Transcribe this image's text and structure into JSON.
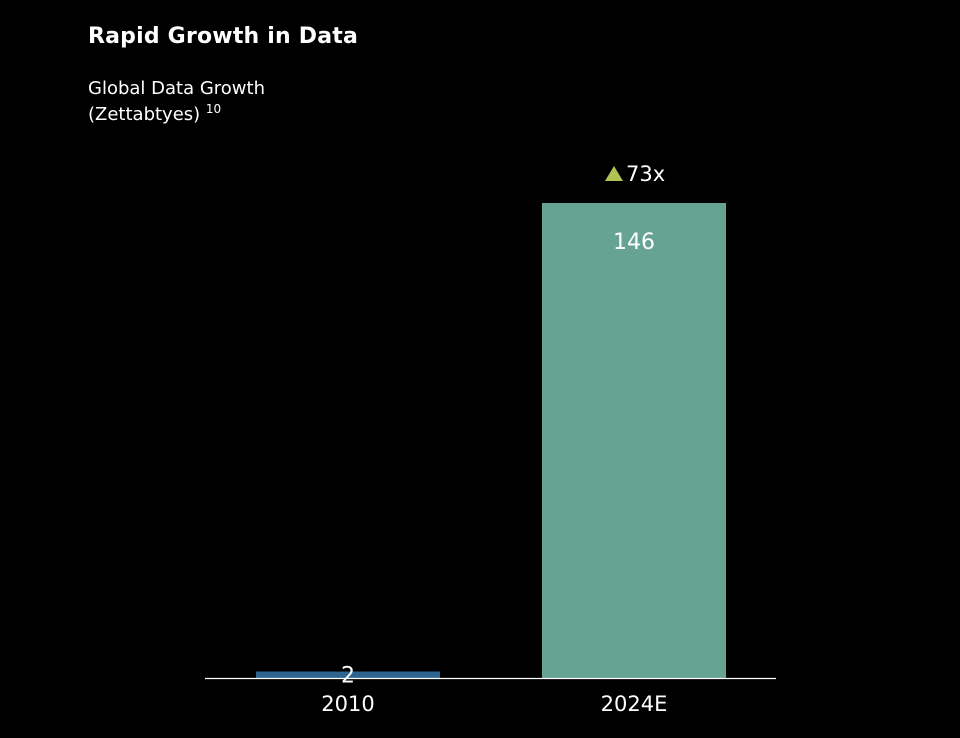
{
  "page": {
    "title": "Rapid Growth in Data",
    "subtitle_line1": "Global Data Growth",
    "subtitle_line2": "(Zettabtyes)",
    "footnote_ref": "10"
  },
  "chart_data": {
    "type": "bar",
    "title": "Rapid Growth in Data",
    "subtitle": "Global Data Growth (Zettabtyes)",
    "xlabel": "",
    "ylabel": "",
    "categories": [
      "2010",
      "2024E"
    ],
    "values": [
      2,
      146
    ],
    "value_labels": [
      "2",
      "146"
    ],
    "bar_colors": [
      "#2e6590",
      "#67a393"
    ],
    "ylim": [
      0,
      146
    ],
    "grid": false,
    "legend": "none",
    "annotation": {
      "text": "73x",
      "icon": "triangle-up-icon",
      "icon_color": "#b0c455",
      "target_category": "2024E"
    }
  }
}
